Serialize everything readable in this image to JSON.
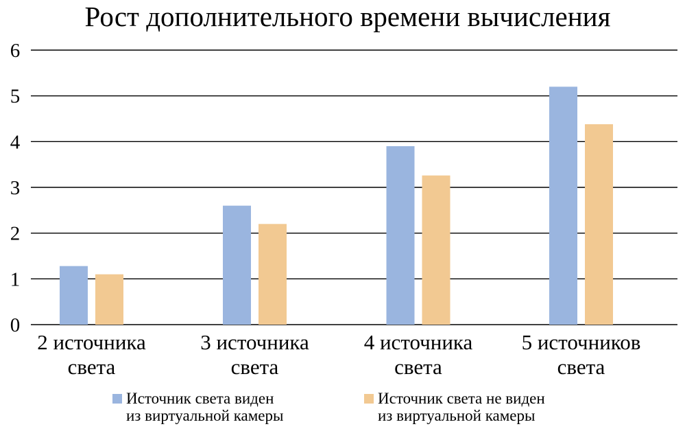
{
  "chart_data": {
    "type": "bar",
    "title": "Рост дополнительного времени вычисления",
    "xlabel": "",
    "ylabel": "",
    "ylim": [
      0,
      6
    ],
    "yticks": [
      0,
      1,
      2,
      3,
      4,
      5,
      6
    ],
    "grid": true,
    "legend_position": "bottom",
    "categories": [
      [
        "2 источника",
        "света"
      ],
      [
        "3 источника",
        "света"
      ],
      [
        "4 источника",
        "света"
      ],
      [
        "5 источников",
        "света"
      ]
    ],
    "series": [
      {
        "name": [
          "Источник света виден",
          "из виртуальной камеры"
        ],
        "color": "#9ab5df",
        "values": [
          1.28,
          2.6,
          3.9,
          5.2
        ]
      },
      {
        "name": [
          "Источник света не виден",
          "из виртуальной камеры"
        ],
        "color": "#f2c992",
        "values": [
          1.1,
          2.2,
          3.26,
          4.38
        ]
      }
    ]
  }
}
